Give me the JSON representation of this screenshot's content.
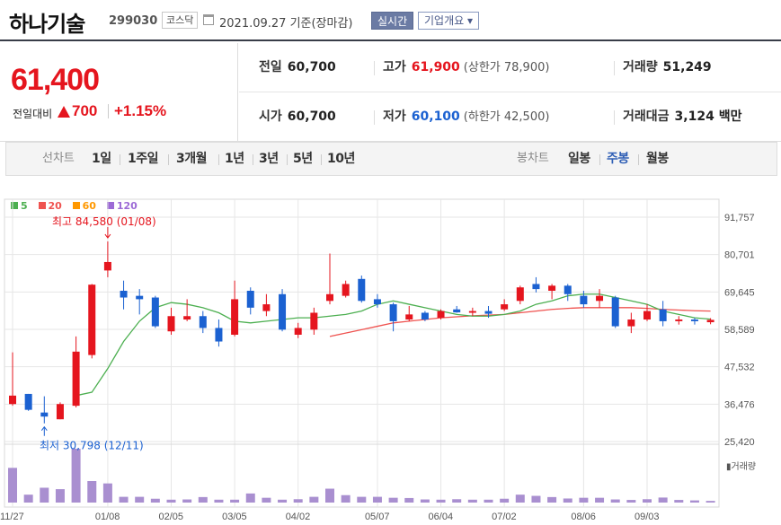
{
  "header": {
    "stock_name": "하나기술",
    "stock_code": "299030",
    "market": "코스닥",
    "date": "2021.09.27 기준(장마감)",
    "realtime_btn": "실시간",
    "company_info_btn": "기업개요 ▾"
  },
  "quote": {
    "price": "61,400",
    "change_label": "전일대비",
    "change_amount": "700",
    "change_pct": "+1.15%",
    "prev_close_label": "전일",
    "prev_close": "60,700",
    "high_label": "고가",
    "high": "61,900",
    "upper_limit": "(상한가 78,900)",
    "volume_label": "거래량",
    "volume": "51,249",
    "open_label": "시가",
    "open": "60,700",
    "low_label": "저가",
    "low": "60,100",
    "lower_limit": "(하한가 42,500)",
    "trade_value_label": "거래대금",
    "trade_value": "3,124 백만"
  },
  "periods": {
    "line_label": "선차트",
    "line_items": [
      "1일",
      "1주일",
      "3개월",
      "1년",
      "3년",
      "5년",
      "10년"
    ],
    "candle_label": "봉차트",
    "candle_items": [
      "일봉",
      "주봉",
      "월봉"
    ],
    "active_candle": "주봉"
  },
  "colors": {
    "up": "#e5151e",
    "down": "#1b61d1",
    "ma5": "#4caf50",
    "ma20": "#ef5350",
    "ma60": "#ff9800",
    "ma120": "#9c6ad6",
    "volume": "#a98fd0"
  },
  "chart_data": {
    "type": "candlestick",
    "legend": [
      "5",
      "20",
      "60",
      "120"
    ],
    "y_ticks": [
      "91,757",
      "80,701",
      "69,645",
      "58,589",
      "47,532",
      "36,476",
      "25,420"
    ],
    "y_tick_values": [
      91757,
      80701,
      69645,
      58589,
      47532,
      36476,
      25420
    ],
    "ylim": [
      25420,
      91757
    ],
    "x_ticks": [
      "11/27",
      "01/08",
      "02/05",
      "03/05",
      "04/02",
      "05/07",
      "06/04",
      "07/02",
      "08/06",
      "09/03"
    ],
    "x_tick_index": [
      0,
      6,
      10,
      14,
      18,
      23,
      27,
      31,
      36,
      40
    ],
    "high_label": "최고 84,580 (01/08)",
    "low_label": "최저 30,798 (12/11)",
    "volume_label": "거래량",
    "candles": [
      {
        "o": 36500,
        "h": 51800,
        "l": 36000,
        "c": 39000
      },
      {
        "o": 39500,
        "h": 39500,
        "l": 34500,
        "c": 34800
      },
      {
        "o": 34000,
        "h": 38800,
        "l": 30798,
        "c": 32800
      },
      {
        "o": 32000,
        "h": 37000,
        "l": 32000,
        "c": 36500
      },
      {
        "o": 36000,
        "h": 56500,
        "l": 35500,
        "c": 52000
      },
      {
        "o": 51000,
        "h": 72000,
        "l": 50000,
        "c": 71800
      },
      {
        "o": 76000,
        "h": 84580,
        "l": 74000,
        "c": 78500
      },
      {
        "o": 70000,
        "h": 73000,
        "l": 64500,
        "c": 68000
      },
      {
        "o": 68500,
        "h": 70500,
        "l": 63000,
        "c": 67500
      },
      {
        "o": 68000,
        "h": 68500,
        "l": 59000,
        "c": 59500
      },
      {
        "o": 58000,
        "h": 65000,
        "l": 57000,
        "c": 62500
      },
      {
        "o": 61500,
        "h": 67500,
        "l": 61000,
        "c": 62500
      },
      {
        "o": 62500,
        "h": 64000,
        "l": 57500,
        "c": 59000
      },
      {
        "o": 59000,
        "h": 61500,
        "l": 53500,
        "c": 55000
      },
      {
        "o": 57000,
        "h": 73000,
        "l": 56500,
        "c": 67500
      },
      {
        "o": 70000,
        "h": 71000,
        "l": 63000,
        "c": 65000
      },
      {
        "o": 64000,
        "h": 69000,
        "l": 62500,
        "c": 66000
      },
      {
        "o": 69000,
        "h": 70500,
        "l": 58000,
        "c": 58500
      },
      {
        "o": 57000,
        "h": 60500,
        "l": 56000,
        "c": 59000
      },
      {
        "o": 58500,
        "h": 65000,
        "l": 57000,
        "c": 63500
      },
      {
        "o": 67000,
        "h": 81000,
        "l": 66000,
        "c": 69000
      },
      {
        "o": 68500,
        "h": 73000,
        "l": 68000,
        "c": 72000
      },
      {
        "o": 73500,
        "h": 74500,
        "l": 66500,
        "c": 67000
      },
      {
        "o": 67500,
        "h": 69000,
        "l": 65000,
        "c": 66000
      },
      {
        "o": 66000,
        "h": 66500,
        "l": 58000,
        "c": 61000
      },
      {
        "o": 61500,
        "h": 65500,
        "l": 61000,
        "c": 63000
      },
      {
        "o": 63500,
        "h": 64000,
        "l": 61000,
        "c": 61500
      },
      {
        "o": 62000,
        "h": 64500,
        "l": 61500,
        "c": 64000
      },
      {
        "o": 64500,
        "h": 65500,
        "l": 63500,
        "c": 63600
      },
      {
        "o": 63500,
        "h": 65000,
        "l": 62500,
        "c": 64000
      },
      {
        "o": 64000,
        "h": 65500,
        "l": 62000,
        "c": 63200
      },
      {
        "o": 64500,
        "h": 67500,
        "l": 64000,
        "c": 66000
      },
      {
        "o": 67000,
        "h": 71500,
        "l": 66000,
        "c": 71000
      },
      {
        "o": 72000,
        "h": 74000,
        "l": 69500,
        "c": 70500
      },
      {
        "o": 70000,
        "h": 72000,
        "l": 67500,
        "c": 71500
      },
      {
        "o": 71500,
        "h": 72000,
        "l": 67000,
        "c": 69000
      },
      {
        "o": 68500,
        "h": 70000,
        "l": 65000,
        "c": 66000
      },
      {
        "o": 67000,
        "h": 70500,
        "l": 65000,
        "c": 68500
      },
      {
        "o": 68000,
        "h": 68500,
        "l": 59000,
        "c": 59500
      },
      {
        "o": 59500,
        "h": 63500,
        "l": 57500,
        "c": 61500
      },
      {
        "o": 61500,
        "h": 66000,
        "l": 61000,
        "c": 64000
      },
      {
        "o": 64500,
        "h": 67000,
        "l": 59500,
        "c": 61000
      },
      {
        "o": 61000,
        "h": 62500,
        "l": 60000,
        "c": 61500
      },
      {
        "o": 61500,
        "h": 62000,
        "l": 60000,
        "c": 61000
      },
      {
        "o": 60700,
        "h": 61900,
        "l": 60100,
        "c": 61400
      }
    ],
    "ma5": [
      null,
      null,
      null,
      null,
      39000,
      40000,
      47000,
      55000,
      61000,
      65000,
      66500,
      66000,
      65000,
      63500,
      61000,
      60500,
      61000,
      61500,
      62000,
      62000,
      62500,
      63000,
      64000,
      66000,
      67000,
      66000,
      65000,
      64000,
      63000,
      62500,
      62500,
      63000,
      64000,
      66000,
      67000,
      68500,
      69000,
      69000,
      68000,
      67000,
      66000,
      64000,
      63000,
      62000,
      61600
    ],
    "ma20": [
      null,
      null,
      null,
      null,
      null,
      null,
      null,
      null,
      null,
      null,
      null,
      null,
      null,
      null,
      null,
      null,
      null,
      null,
      null,
      null,
      56500,
      57500,
      58500,
      59500,
      60500,
      61000,
      61500,
      62000,
      62300,
      62600,
      62800,
      63000,
      63500,
      64000,
      64500,
      64800,
      65000,
      65000,
      65000,
      65000,
      64800,
      64500,
      64300,
      64100,
      64000
    ],
    "volume": [
      1450,
      330,
      620,
      560,
      2250,
      900,
      800,
      240,
      240,
      160,
      120,
      130,
      230,
      120,
      120,
      380,
      200,
      120,
      140,
      240,
      580,
      310,
      240,
      240,
      200,
      190,
      130,
      120,
      140,
      120,
      120,
      160,
      330,
      280,
      230,
      170,
      200,
      200,
      130,
      110,
      140,
      210,
      110,
      90,
      70
    ]
  }
}
